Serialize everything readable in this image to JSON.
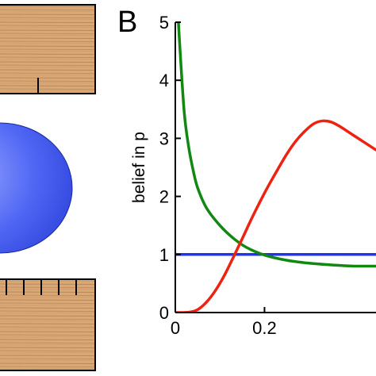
{
  "panel_label": "B",
  "chart_data": {
    "type": "line",
    "title": "",
    "xlabel": "",
    "ylabel": "belief in p",
    "xlim": [
      0,
      0.45
    ],
    "ylim": [
      0,
      5
    ],
    "xticks": [
      0,
      0.2
    ],
    "xtick_labels": [
      "0",
      "0.2"
    ],
    "yticks": [
      0,
      1,
      2,
      3,
      4,
      5
    ],
    "ytick_labels": [
      "0",
      "1",
      "2",
      "3",
      "4",
      "5"
    ],
    "grid": false,
    "legend": "none",
    "series": [
      {
        "color": "#2233ee",
        "x": [
          0,
          0.45
        ],
        "y": [
          1,
          1
        ]
      },
      {
        "color": "#118811",
        "x": [
          0.005,
          0.01,
          0.02,
          0.03,
          0.04,
          0.05,
          0.07,
          0.1,
          0.13,
          0.16,
          0.2,
          0.25,
          0.3,
          0.35,
          0.4,
          0.45
        ],
        "y": [
          5.3,
          4.6,
          3.45,
          2.85,
          2.45,
          2.15,
          1.8,
          1.5,
          1.28,
          1.12,
          0.99,
          0.9,
          0.85,
          0.82,
          0.8,
          0.8
        ]
      },
      {
        "color": "#ee2211",
        "x": [
          0,
          0.03,
          0.05,
          0.07,
          0.09,
          0.11,
          0.13,
          0.15,
          0.17,
          0.19,
          0.21,
          0.23,
          0.25,
          0.27,
          0.29,
          0.31,
          0.33,
          0.35,
          0.37,
          0.39,
          0.41,
          0.43,
          0.45
        ],
        "y": [
          0,
          0.005,
          0.05,
          0.18,
          0.38,
          0.64,
          0.95,
          1.27,
          1.6,
          1.91,
          2.2,
          2.47,
          2.73,
          2.95,
          3.12,
          3.25,
          3.3,
          3.28,
          3.2,
          3.1,
          3.0,
          2.9,
          2.8
        ]
      }
    ]
  },
  "left_panel": {
    "wood_color": "#d9a874",
    "grain_color": "#b8875a",
    "ellipse_color": "#3a55f0",
    "ellipse_highlight": "#9aa8ff"
  }
}
